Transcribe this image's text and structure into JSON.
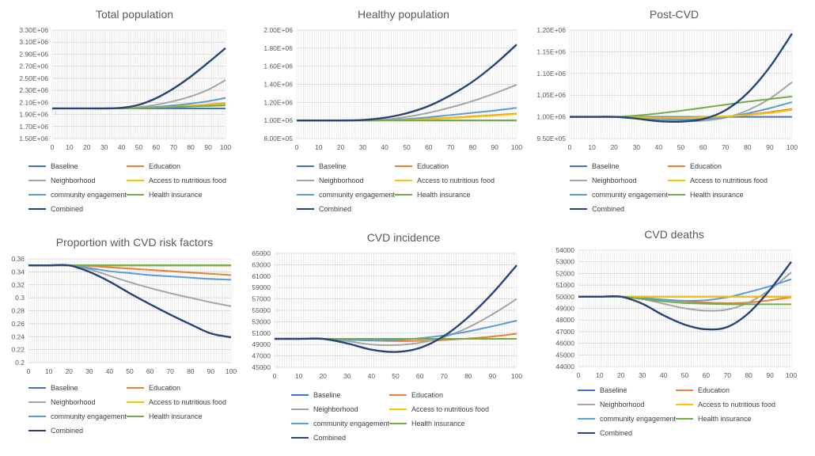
{
  "chart_data": [
    {
      "type": "line",
      "title": "Total population",
      "x": [
        0,
        10,
        20,
        30,
        40,
        50,
        60,
        70,
        80,
        90,
        100
      ],
      "yticks": [
        "1.50E+06",
        "1.70E+06",
        "1.90E+06",
        "2.10E+06",
        "2.30E+06",
        "2.50E+06",
        "2.70E+06",
        "2.90E+06",
        "3.10E+06",
        "3.30E+06"
      ],
      "ylim": [
        1500000,
        3300000
      ],
      "series": [
        {
          "name": "Baseline",
          "values": [
            2000000,
            2000000,
            2000000,
            2000000,
            2000000,
            2000000,
            2000000,
            2000000,
            2000000,
            2000000,
            2000000
          ]
        },
        {
          "name": "Education",
          "values": [
            2000000,
            2000000,
            2000000,
            2000000,
            2000000,
            2005000,
            2015000,
            2030000,
            2045000,
            2065000,
            2085000
          ]
        },
        {
          "name": "Neighborhood",
          "values": [
            2000000,
            2000000,
            2000000,
            2000000,
            2002000,
            2020000,
            2060000,
            2120000,
            2200000,
            2310000,
            2470000
          ]
        },
        {
          "name": "Access to nutritious food",
          "values": [
            2000000,
            2000000,
            2000000,
            2000000,
            2000000,
            2004000,
            2012000,
            2025000,
            2040000,
            2058000,
            2075000
          ]
        },
        {
          "name": "community engagement",
          "values": [
            2000000,
            2000000,
            2000000,
            2000000,
            2000000,
            2008000,
            2025000,
            2050000,
            2080000,
            2120000,
            2175000
          ]
        },
        {
          "name": "Health insurance",
          "values": [
            2000000,
            2000000,
            2000000,
            2000000,
            2000000,
            2003000,
            2010000,
            2020000,
            2030000,
            2040000,
            2050000
          ]
        },
        {
          "name": "Combined",
          "values": [
            2000000,
            2000000,
            2000000,
            2000000,
            2010000,
            2060000,
            2170000,
            2330000,
            2530000,
            2760000,
            3000000
          ]
        }
      ]
    },
    {
      "type": "line",
      "title": "Healthy population",
      "x": [
        0,
        10,
        20,
        30,
        40,
        50,
        60,
        70,
        80,
        90,
        100
      ],
      "yticks": [
        "8.00E+05",
        "1.00E+06",
        "1.20E+06",
        "1.40E+06",
        "1.60E+06",
        "1.80E+06",
        "2.00E+06"
      ],
      "ylim": [
        800000,
        2000000
      ],
      "series": [
        {
          "name": "Baseline",
          "values": [
            1000000,
            1000000,
            1000000,
            1000000,
            1000000,
            1000000,
            1000000,
            1000000,
            1000000,
            1000000,
            1000000
          ]
        },
        {
          "name": "Education",
          "values": [
            1000000,
            1000000,
            1000000,
            1000000,
            1002000,
            1008000,
            1018000,
            1030000,
            1045000,
            1060000,
            1075000
          ]
        },
        {
          "name": "Neighborhood",
          "values": [
            1000000,
            1000000,
            1000000,
            1000000,
            1010000,
            1040000,
            1085000,
            1145000,
            1215000,
            1300000,
            1395000
          ]
        },
        {
          "name": "Access to nutritious food",
          "values": [
            1000000,
            1000000,
            1000000,
            1000000,
            1001000,
            1006000,
            1015000,
            1026000,
            1040000,
            1055000,
            1070000
          ]
        },
        {
          "name": "community engagement",
          "values": [
            1000000,
            1000000,
            1000000,
            1000000,
            1004000,
            1016000,
            1035000,
            1060000,
            1085000,
            1110000,
            1140000
          ]
        },
        {
          "name": "Health insurance",
          "values": [
            1000000,
            1000000,
            1000000,
            1000000,
            1000000,
            1000000,
            1000000,
            1000000,
            1000000,
            1000000,
            1000000
          ]
        },
        {
          "name": "Combined",
          "values": [
            1000000,
            1000000,
            1000000,
            1005000,
            1030000,
            1080000,
            1160000,
            1280000,
            1430000,
            1620000,
            1840000
          ]
        }
      ]
    },
    {
      "type": "line",
      "title": "Post-CVD",
      "x": [
        0,
        10,
        20,
        30,
        40,
        50,
        60,
        70,
        80,
        90,
        100
      ],
      "yticks": [
        "9.50E+05",
        "1.00E+06",
        "1.05E+06",
        "1.10E+06",
        "1.15E+06",
        "1.20E+06"
      ],
      "ylim": [
        950000,
        1200000
      ],
      "series": [
        {
          "name": "Baseline",
          "values": [
            1000000,
            1000000,
            1000000,
            1000000,
            1000000,
            1000000,
            1000000,
            1000000,
            1000000,
            1000000,
            1000000
          ]
        },
        {
          "name": "Education",
          "values": [
            1000000,
            1000000,
            1000000,
            999000,
            998000,
            998000,
            999000,
            1001000,
            1005000,
            1011000,
            1018000
          ]
        },
        {
          "name": "Neighborhood",
          "values": [
            1000000,
            1000000,
            1000000,
            998000,
            993000,
            990000,
            991000,
            998000,
            1015000,
            1042000,
            1080000
          ]
        },
        {
          "name": "Access to nutritious food",
          "values": [
            1000000,
            1000000,
            1000000,
            999000,
            998000,
            998000,
            999000,
            1001000,
            1004000,
            1009000,
            1016000
          ]
        },
        {
          "name": "community engagement",
          "values": [
            1000000,
            1000000,
            1000000,
            999000,
            996000,
            994000,
            995000,
            999000,
            1008000,
            1020000,
            1034000
          ]
        },
        {
          "name": "Health insurance",
          "values": [
            1000000,
            1000000,
            1000000,
            1003000,
            1008000,
            1014000,
            1021000,
            1028000,
            1035000,
            1041000,
            1047000
          ]
        },
        {
          "name": "Combined",
          "values": [
            1000000,
            1000000,
            1000000,
            996000,
            990000,
            989000,
            995000,
            1015000,
            1055000,
            1115000,
            1192000
          ]
        }
      ]
    },
    {
      "type": "line",
      "title": "Proportion with CVD risk factors",
      "x": [
        0,
        10,
        20,
        30,
        40,
        50,
        60,
        70,
        80,
        90,
        100
      ],
      "yticks": [
        "0.2",
        "0.22",
        "0.24",
        "0.26",
        "0.28",
        "0.3",
        "0.32",
        "0.34",
        "0.36"
      ],
      "ylim": [
        0.2,
        0.36
      ],
      "series": [
        {
          "name": "Baseline",
          "values": [
            0.35,
            0.35,
            0.35,
            0.35,
            0.35,
            0.35,
            0.35,
            0.35,
            0.35,
            0.35,
            0.35
          ]
        },
        {
          "name": "Education",
          "values": [
            0.35,
            0.35,
            0.35,
            0.349,
            0.347,
            0.345,
            0.343,
            0.341,
            0.339,
            0.337,
            0.335
          ]
        },
        {
          "name": "Neighborhood",
          "values": [
            0.35,
            0.35,
            0.35,
            0.344,
            0.334,
            0.324,
            0.315,
            0.307,
            0.3,
            0.293,
            0.287
          ]
        },
        {
          "name": "Access to nutritious food",
          "values": [
            0.35,
            0.35,
            0.35,
            0.35,
            0.35,
            0.35,
            0.35,
            0.35,
            0.35,
            0.35,
            0.35
          ]
        },
        {
          "name": "community engagement",
          "values": [
            0.35,
            0.35,
            0.35,
            0.346,
            0.341,
            0.338,
            0.335,
            0.333,
            0.331,
            0.329,
            0.328
          ]
        },
        {
          "name": "Health insurance",
          "values": [
            0.35,
            0.35,
            0.35,
            0.35,
            0.35,
            0.35,
            0.35,
            0.35,
            0.35,
            0.35,
            0.35
          ]
        },
        {
          "name": "Combined",
          "values": [
            0.35,
            0.35,
            0.35,
            0.34,
            0.325,
            0.307,
            0.29,
            0.274,
            0.259,
            0.245,
            0.239
          ]
        }
      ]
    },
    {
      "type": "line",
      "title": "CVD incidence",
      "x": [
        0,
        10,
        20,
        30,
        40,
        50,
        60,
        70,
        80,
        90,
        100
      ],
      "yticks": [
        "45000",
        "47000",
        "49000",
        "51000",
        "53000",
        "55000",
        "57000",
        "59000",
        "61000",
        "63000",
        "65000"
      ],
      "ylim": [
        45000,
        65000
      ],
      "series": [
        {
          "name": "Baseline",
          "values": [
            50000,
            50000,
            50000,
            50000,
            50000,
            50000,
            50000,
            50000,
            50000,
            50000,
            50000
          ]
        },
        {
          "name": "Education",
          "values": [
            50000,
            50000,
            50000,
            49900,
            49700,
            49600,
            49650,
            49800,
            50050,
            50400,
            50900
          ]
        },
        {
          "name": "Neighborhood",
          "values": [
            50000,
            50000,
            50000,
            49600,
            49000,
            48900,
            49300,
            50300,
            52000,
            54300,
            57000
          ]
        },
        {
          "name": "Access to nutritious food",
          "values": [
            50000,
            50000,
            50000,
            50000,
            50000,
            50000,
            50000,
            50000,
            50000,
            50000,
            50000
          ]
        },
        {
          "name": "community engagement",
          "values": [
            50000,
            50000,
            50000,
            49850,
            49700,
            49800,
            50100,
            50600,
            51300,
            52200,
            53200
          ]
        },
        {
          "name": "Health insurance",
          "values": [
            50000,
            50000,
            50000,
            50000,
            50000,
            50000,
            50000,
            50000,
            50000,
            50000,
            50000
          ]
        },
        {
          "name": "Combined",
          "values": [
            50000,
            50000,
            50000,
            49200,
            48100,
            47700,
            48400,
            50500,
            53800,
            58000,
            62900
          ]
        }
      ]
    },
    {
      "type": "line",
      "title": "CVD deaths",
      "x": [
        0,
        10,
        20,
        30,
        40,
        50,
        60,
        70,
        80,
        90,
        100
      ],
      "yticks": [
        "44000",
        "45000",
        "46000",
        "47000",
        "48000",
        "49000",
        "50000",
        "51000",
        "52000",
        "53000",
        "54000"
      ],
      "ylim": [
        44000,
        54000
      ],
      "series": [
        {
          "name": "Baseline",
          "values": [
            50000,
            50000,
            50000,
            50000,
            50000,
            50000,
            50000,
            50000,
            50000,
            50000,
            50000
          ]
        },
        {
          "name": "Education",
          "values": [
            50000,
            50000,
            50000,
            49900,
            49750,
            49600,
            49500,
            49450,
            49500,
            49700,
            49950
          ]
        },
        {
          "name": "Neighborhood",
          "values": [
            50000,
            50000,
            50000,
            49800,
            49400,
            49000,
            48800,
            48900,
            49500,
            50600,
            52100
          ]
        },
        {
          "name": "Access to nutritious food",
          "values": [
            50000,
            50000,
            50000,
            50000,
            50000,
            50000,
            50000,
            50000,
            50000,
            50000,
            50000
          ]
        },
        {
          "name": "community engagement",
          "values": [
            50000,
            50000,
            50000,
            49900,
            49750,
            49650,
            49700,
            49950,
            50400,
            50900,
            51500
          ]
        },
        {
          "name": "Health insurance",
          "values": [
            50000,
            50000,
            50000,
            49800,
            49600,
            49450,
            49400,
            49350,
            49350,
            49350,
            49350
          ]
        },
        {
          "name": "Combined",
          "values": [
            50000,
            50000,
            50000,
            49400,
            48400,
            47600,
            47200,
            47400,
            48600,
            50600,
            53000
          ]
        }
      ]
    }
  ],
  "legend": {
    "labels": [
      "Baseline",
      "Education",
      "Neighborhood",
      "Access to nutritious food",
      "community engagement",
      "Health insurance",
      "Combined"
    ]
  },
  "colors": {
    "Baseline": "#4472C4",
    "Education": "#ED7D31",
    "Neighborhood": "#A5A5A5",
    "Access to nutritious food": "#FFC000",
    "community engagement": "#5B9BD5",
    "Health insurance": "#70AD47",
    "Combined": "#264478"
  }
}
